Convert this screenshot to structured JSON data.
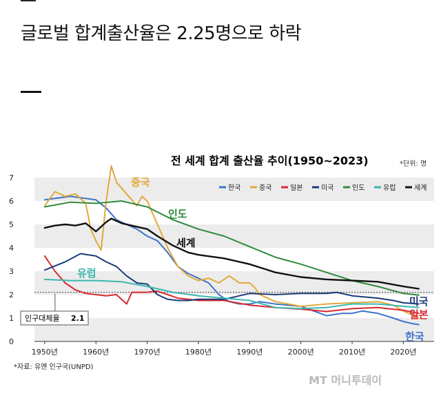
{
  "article": {
    "headline": "글로벌 합계출산율은 2.25명으로 하락"
  },
  "chart_data": {
    "type": "line",
    "title": "전 세계 합계 출산율 추이(1950~2023)",
    "unit": "*단위: 명",
    "source": "*자료: 유엔 인구국(UNPD)",
    "watermark": "MT 머니투데이",
    "xlim": [
      1948,
      2026
    ],
    "ylim": [
      0,
      7
    ],
    "x_ticks": [
      1950,
      1960,
      1970,
      1980,
      1990,
      2000,
      2010,
      2020
    ],
    "x_tick_labels": [
      "1950년",
      "1960년",
      "1970년",
      "1980년",
      "1990년",
      "2000년",
      "2010년",
      "2020년"
    ],
    "y_ticks": [
      0,
      1,
      2,
      3,
      4,
      5,
      6,
      7
    ],
    "y_tick_labels": [
      "0",
      "1",
      "2",
      "3",
      "4",
      "5",
      "6",
      "7"
    ],
    "replacement_level": 2.1,
    "replacement_label": "인구대체율",
    "replacement_value_label": "2.1",
    "legend": [
      "한국",
      "중국",
      "일본",
      "미국",
      "인도",
      "유럽",
      "세계"
    ],
    "series": [
      {
        "name": "한국",
        "color": "#3b73c9",
        "end_label": "한국",
        "x": [
          1950,
          1955,
          1960,
          1962,
          1964,
          1966,
          1968,
          1970,
          1972,
          1974,
          1976,
          1978,
          1980,
          1982,
          1984,
          1986,
          1988,
          1990,
          1992,
          1995,
          2000,
          2005,
          2008,
          2010,
          2012,
          2015,
          2018,
          2020,
          2022,
          2023
        ],
        "values": [
          6.05,
          6.2,
          6.05,
          5.7,
          5.2,
          5.0,
          4.8,
          4.5,
          4.3,
          3.8,
          3.2,
          2.9,
          2.7,
          2.5,
          2.0,
          1.7,
          1.6,
          1.6,
          1.7,
          1.6,
          1.5,
          1.1,
          1.2,
          1.2,
          1.3,
          1.2,
          1.0,
          0.85,
          0.75,
          0.72
        ]
      },
      {
        "name": "중국",
        "color": "#e3a83a",
        "end_label": "중국",
        "x": [
          1950,
          1952,
          1954,
          1956,
          1958,
          1959,
          1960,
          1961,
          1962,
          1963,
          1964,
          1966,
          1968,
          1969,
          1970,
          1972,
          1974,
          1976,
          1978,
          1980,
          1982,
          1984,
          1986,
          1988,
          1990,
          1991,
          1992,
          1995,
          2000,
          2005,
          2010,
          2015,
          2018,
          2020,
          2022,
          2023
        ],
        "values": [
          5.8,
          6.4,
          6.2,
          6.3,
          5.9,
          4.8,
          4.3,
          3.9,
          6.0,
          7.5,
          6.8,
          6.3,
          5.8,
          6.2,
          6.0,
          5.0,
          4.0,
          3.2,
          2.8,
          2.6,
          2.7,
          2.5,
          2.8,
          2.5,
          2.5,
          2.3,
          2.0,
          1.7,
          1.5,
          1.6,
          1.65,
          1.7,
          1.55,
          1.3,
          1.1,
          1.0
        ]
      },
      {
        "name": "일본",
        "color": "#d7282f",
        "end_label": "일본",
        "x": [
          1950,
          1952,
          1954,
          1956,
          1958,
          1960,
          1962,
          1964,
          1966,
          1967,
          1968,
          1970,
          1972,
          1974,
          1976,
          1978,
          1980,
          1985,
          1990,
          1995,
          2000,
          2005,
          2010,
          2015,
          2020,
          2023
        ],
        "values": [
          3.65,
          3.0,
          2.5,
          2.2,
          2.05,
          2.0,
          1.95,
          2.0,
          1.6,
          2.1,
          2.1,
          2.1,
          2.15,
          2.0,
          1.85,
          1.8,
          1.75,
          1.75,
          1.55,
          1.45,
          1.38,
          1.28,
          1.4,
          1.45,
          1.33,
          1.2
        ]
      },
      {
        "name": "미국",
        "color": "#1a3a7a",
        "end_label": "미국",
        "x": [
          1950,
          1954,
          1957,
          1960,
          1962,
          1964,
          1966,
          1968,
          1970,
          1972,
          1974,
          1976,
          1978,
          1980,
          1985,
          1990,
          1995,
          2000,
          2005,
          2007,
          2010,
          2015,
          2018,
          2020,
          2023
        ],
        "values": [
          3.05,
          3.4,
          3.75,
          3.65,
          3.4,
          3.2,
          2.8,
          2.5,
          2.45,
          2.0,
          1.8,
          1.75,
          1.75,
          1.8,
          1.8,
          2.05,
          2.0,
          2.05,
          2.05,
          2.1,
          1.95,
          1.85,
          1.75,
          1.65,
          1.6
        ]
      },
      {
        "name": "인도",
        "color": "#2f8a3a",
        "end_label": "인도",
        "x": [
          1950,
          1955,
          1960,
          1965,
          1970,
          1975,
          1980,
          1985,
          1990,
          1995,
          2000,
          2005,
          2010,
          2015,
          2020,
          2023
        ],
        "values": [
          5.75,
          5.95,
          5.9,
          6.0,
          5.75,
          5.2,
          4.8,
          4.5,
          4.05,
          3.6,
          3.3,
          2.95,
          2.6,
          2.35,
          2.05,
          1.98
        ]
      },
      {
        "name": "유럽",
        "color": "#3ab8b0",
        "end_label": "유럽",
        "x": [
          1950,
          1955,
          1960,
          1965,
          1970,
          1975,
          1980,
          1985,
          1990,
          1995,
          2000,
          2005,
          2010,
          2015,
          2020,
          2023
        ],
        "values": [
          2.65,
          2.6,
          2.6,
          2.55,
          2.35,
          2.1,
          1.95,
          1.85,
          1.75,
          1.45,
          1.4,
          1.45,
          1.6,
          1.6,
          1.5,
          1.45
        ]
      },
      {
        "name": "세계",
        "color": "#111111",
        "end_label": "세계",
        "x": [
          1950,
          1952,
          1954,
          1956,
          1958,
          1960,
          1962,
          1963,
          1965,
          1968,
          1970,
          1972,
          1975,
          1978,
          1980,
          1985,
          1990,
          1995,
          2000,
          2005,
          2010,
          2015,
          2020,
          2023
        ],
        "values": [
          4.85,
          4.95,
          5.0,
          4.95,
          5.05,
          4.7,
          5.1,
          5.25,
          5.05,
          4.9,
          4.8,
          4.5,
          4.1,
          3.8,
          3.7,
          3.55,
          3.3,
          2.95,
          2.75,
          2.65,
          2.6,
          2.55,
          2.35,
          2.25
        ]
      }
    ]
  }
}
